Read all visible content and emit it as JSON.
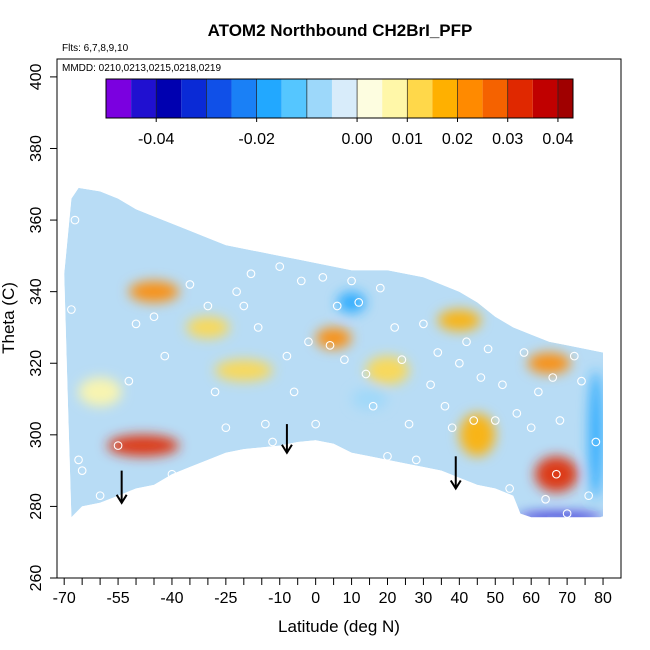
{
  "chart_data": {
    "type": "heatmap",
    "title": "ATOM2 Northbound CH2BrI_PFP",
    "annotations": {
      "flights": "Flts: 6,7,8,9,10",
      "dates": "MMDD: 0210,0213,0215,0218,0219"
    },
    "xlabel": "Latitude (deg N)",
    "ylabel": "Theta (C)",
    "xlim": [
      -72,
      85
    ],
    "ylim": [
      260,
      405
    ],
    "x_ticks": [
      -70,
      -55,
      -40,
      -25,
      -10,
      0,
      10,
      20,
      30,
      40,
      50,
      60,
      70,
      80
    ],
    "x_ticks_minor": [
      -65,
      -60,
      -50,
      -45,
      -35,
      -30,
      -20,
      -15,
      -5,
      5,
      15,
      25,
      35,
      45,
      55,
      65,
      75
    ],
    "x_tick_labels": [
      "-70",
      "-55",
      "-40",
      "-25",
      "-10",
      "0",
      "10",
      "20",
      "30",
      "40",
      "50",
      "60",
      "70",
      "80"
    ],
    "y_ticks": [
      260,
      280,
      300,
      320,
      340,
      360,
      380,
      400
    ],
    "y_tick_labels": [
      "260",
      "280",
      "300",
      "320",
      "340",
      "360",
      "380",
      "400"
    ],
    "colorbar": {
      "range": [
        -0.05,
        0.043
      ],
      "ticks": [
        -0.04,
        -0.02,
        0.0,
        0.01,
        0.02,
        0.03,
        0.04
      ],
      "tick_labels": [
        "-0.04",
        "-0.02",
        "0.00",
        "0.01",
        "0.02",
        "0.03",
        "0.04"
      ],
      "divisions": [
        -0.05,
        -0.045,
        -0.04,
        -0.035,
        -0.03,
        -0.025,
        -0.02,
        -0.015,
        -0.01,
        -0.005,
        0.0,
        0.005,
        0.01,
        0.015,
        0.02,
        0.025,
        0.03,
        0.035,
        0.04,
        0.043
      ],
      "colors": [
        "#7b00e0",
        "#2010d0",
        "#0000b0",
        "#0a2ad6",
        "#1050e8",
        "#1a80f6",
        "#22a8ff",
        "#55c6ff",
        "#9dd8fa",
        "#d8ecfa",
        "#fdfde0",
        "#fff7a8",
        "#ffd84a",
        "#ffb000",
        "#ff8a00",
        "#f56200",
        "#e02800",
        "#c00000",
        "#a00000",
        "#8a1010"
      ]
    },
    "region_outline": [
      [
        -68,
        277
      ],
      [
        -65,
        280
      ],
      [
        -60,
        281
      ],
      [
        -55,
        283
      ],
      [
        -50,
        285
      ],
      [
        -45,
        286
      ],
      [
        -40,
        289
      ],
      [
        -35,
        291
      ],
      [
        -30,
        293
      ],
      [
        -25,
        295
      ],
      [
        -20,
        296
      ],
      [
        -15,
        296.5
      ],
      [
        -10,
        297
      ],
      [
        -5,
        298
      ],
      [
        0,
        298.5
      ],
      [
        5,
        297.5
      ],
      [
        10,
        295
      ],
      [
        15,
        294
      ],
      [
        20,
        293
      ],
      [
        25,
        292
      ],
      [
        30,
        291
      ],
      [
        35,
        290
      ],
      [
        40,
        288
      ],
      [
        45,
        286
      ],
      [
        50,
        285
      ],
      [
        55,
        283
      ],
      [
        57,
        278
      ],
      [
        60,
        277
      ],
      [
        65,
        277
      ],
      [
        70,
        277
      ],
      [
        75,
        277
      ],
      [
        80,
        277
      ],
      [
        80,
        300
      ],
      [
        80,
        323
      ],
      [
        75,
        324
      ],
      [
        70,
        325
      ],
      [
        65,
        326
      ],
      [
        60,
        328
      ],
      [
        55,
        330
      ],
      [
        50,
        333
      ],
      [
        45,
        337
      ],
      [
        40,
        340
      ],
      [
        35,
        342
      ],
      [
        30,
        344
      ],
      [
        25,
        345
      ],
      [
        20,
        346
      ],
      [
        15,
        346
      ],
      [
        10,
        346
      ],
      [
        5,
        347
      ],
      [
        0,
        348
      ],
      [
        -5,
        349
      ],
      [
        -10,
        350
      ],
      [
        -15,
        351
      ],
      [
        -20,
        352
      ],
      [
        -25,
        353
      ],
      [
        -30,
        355
      ],
      [
        -35,
        357
      ],
      [
        -40,
        359
      ],
      [
        -45,
        361
      ],
      [
        -50,
        363
      ],
      [
        -55,
        366
      ],
      [
        -60,
        368
      ],
      [
        -66,
        369
      ],
      [
        -68,
        366
      ],
      [
        -70,
        345
      ],
      [
        -69,
        310
      ]
    ],
    "field_features": [
      {
        "x": -45,
        "y": 340,
        "value": 0.02,
        "rx": 7,
        "ry": 3
      },
      {
        "x": -30,
        "y": 330,
        "value": 0.01,
        "rx": 6,
        "ry": 3
      },
      {
        "x": -60,
        "y": 312,
        "value": 0.005,
        "rx": 6,
        "ry": 4
      },
      {
        "x": -48,
        "y": 297,
        "value": 0.03,
        "rx": 10,
        "ry": 3
      },
      {
        "x": -20,
        "y": 318,
        "value": 0.01,
        "rx": 8,
        "ry": 3
      },
      {
        "x": 5,
        "y": 327,
        "value": 0.02,
        "rx": 5,
        "ry": 3
      },
      {
        "x": 20,
        "y": 318,
        "value": 0.01,
        "rx": 6,
        "ry": 4
      },
      {
        "x": 40,
        "y": 332,
        "value": 0.015,
        "rx": 6,
        "ry": 3
      },
      {
        "x": 65,
        "y": 320,
        "value": 0.02,
        "rx": 6,
        "ry": 3
      },
      {
        "x": 45,
        "y": 300,
        "value": 0.015,
        "rx": 5,
        "ry": 6
      },
      {
        "x": 67,
        "y": 289,
        "value": 0.03,
        "rx": 6,
        "ry": 5
      },
      {
        "x": 10,
        "y": 337,
        "value": -0.02,
        "rx": 4,
        "ry": 3
      },
      {
        "x": 15,
        "y": 310,
        "value": -0.01,
        "rx": 5,
        "ry": 3
      },
      {
        "x": 78,
        "y": 300,
        "value": -0.02,
        "rx": 2,
        "ry": 18
      },
      {
        "x": 68,
        "y": 277,
        "value": -0.045,
        "rx": 12,
        "ry": 1.2
      }
    ],
    "sample_points": [
      [
        -68,
        335
      ],
      [
        -67,
        360
      ],
      [
        -66,
        293
      ],
      [
        -65,
        290
      ],
      [
        -60,
        283
      ],
      [
        -55,
        297
      ],
      [
        -52,
        315
      ],
      [
        -50,
        331
      ],
      [
        -45,
        333
      ],
      [
        -42,
        322
      ],
      [
        -40,
        289
      ],
      [
        -35,
        342
      ],
      [
        -30,
        336
      ],
      [
        -28,
        312
      ],
      [
        -25,
        302
      ],
      [
        -22,
        340
      ],
      [
        -20,
        336
      ],
      [
        -18,
        345
      ],
      [
        -16,
        330
      ],
      [
        -14,
        303
      ],
      [
        -12,
        298
      ],
      [
        -10,
        347
      ],
      [
        -8,
        322
      ],
      [
        -6,
        312
      ],
      [
        -4,
        343
      ],
      [
        -2,
        326
      ],
      [
        0,
        303
      ],
      [
        2,
        344
      ],
      [
        4,
        325
      ],
      [
        6,
        336
      ],
      [
        8,
        321
      ],
      [
        10,
        343
      ],
      [
        12,
        337
      ],
      [
        14,
        317
      ],
      [
        16,
        308
      ],
      [
        18,
        341
      ],
      [
        20,
        294
      ],
      [
        22,
        330
      ],
      [
        24,
        321
      ],
      [
        26,
        303
      ],
      [
        28,
        293
      ],
      [
        30,
        331
      ],
      [
        32,
        314
      ],
      [
        34,
        323
      ],
      [
        36,
        308
      ],
      [
        38,
        302
      ],
      [
        40,
        320
      ],
      [
        42,
        326
      ],
      [
        44,
        304
      ],
      [
        46,
        316
      ],
      [
        48,
        324
      ],
      [
        50,
        304
      ],
      [
        52,
        314
      ],
      [
        54,
        285
      ],
      [
        56,
        306
      ],
      [
        58,
        323
      ],
      [
        60,
        302
      ],
      [
        62,
        312
      ],
      [
        64,
        282
      ],
      [
        66,
        316
      ],
      [
        67,
        289
      ],
      [
        68,
        304
      ],
      [
        70,
        278
      ],
      [
        72,
        322
      ],
      [
        74,
        315
      ],
      [
        76,
        283
      ],
      [
        78,
        298
      ],
      [
        80,
        276
      ]
    ],
    "arrows": [
      {
        "x": -54,
        "y_top": 290,
        "y_bottom": 281
      },
      {
        "x": -8,
        "y_top": 303,
        "y_bottom": 295
      },
      {
        "x": 39,
        "y_top": 294,
        "y_bottom": 285
      }
    ]
  }
}
